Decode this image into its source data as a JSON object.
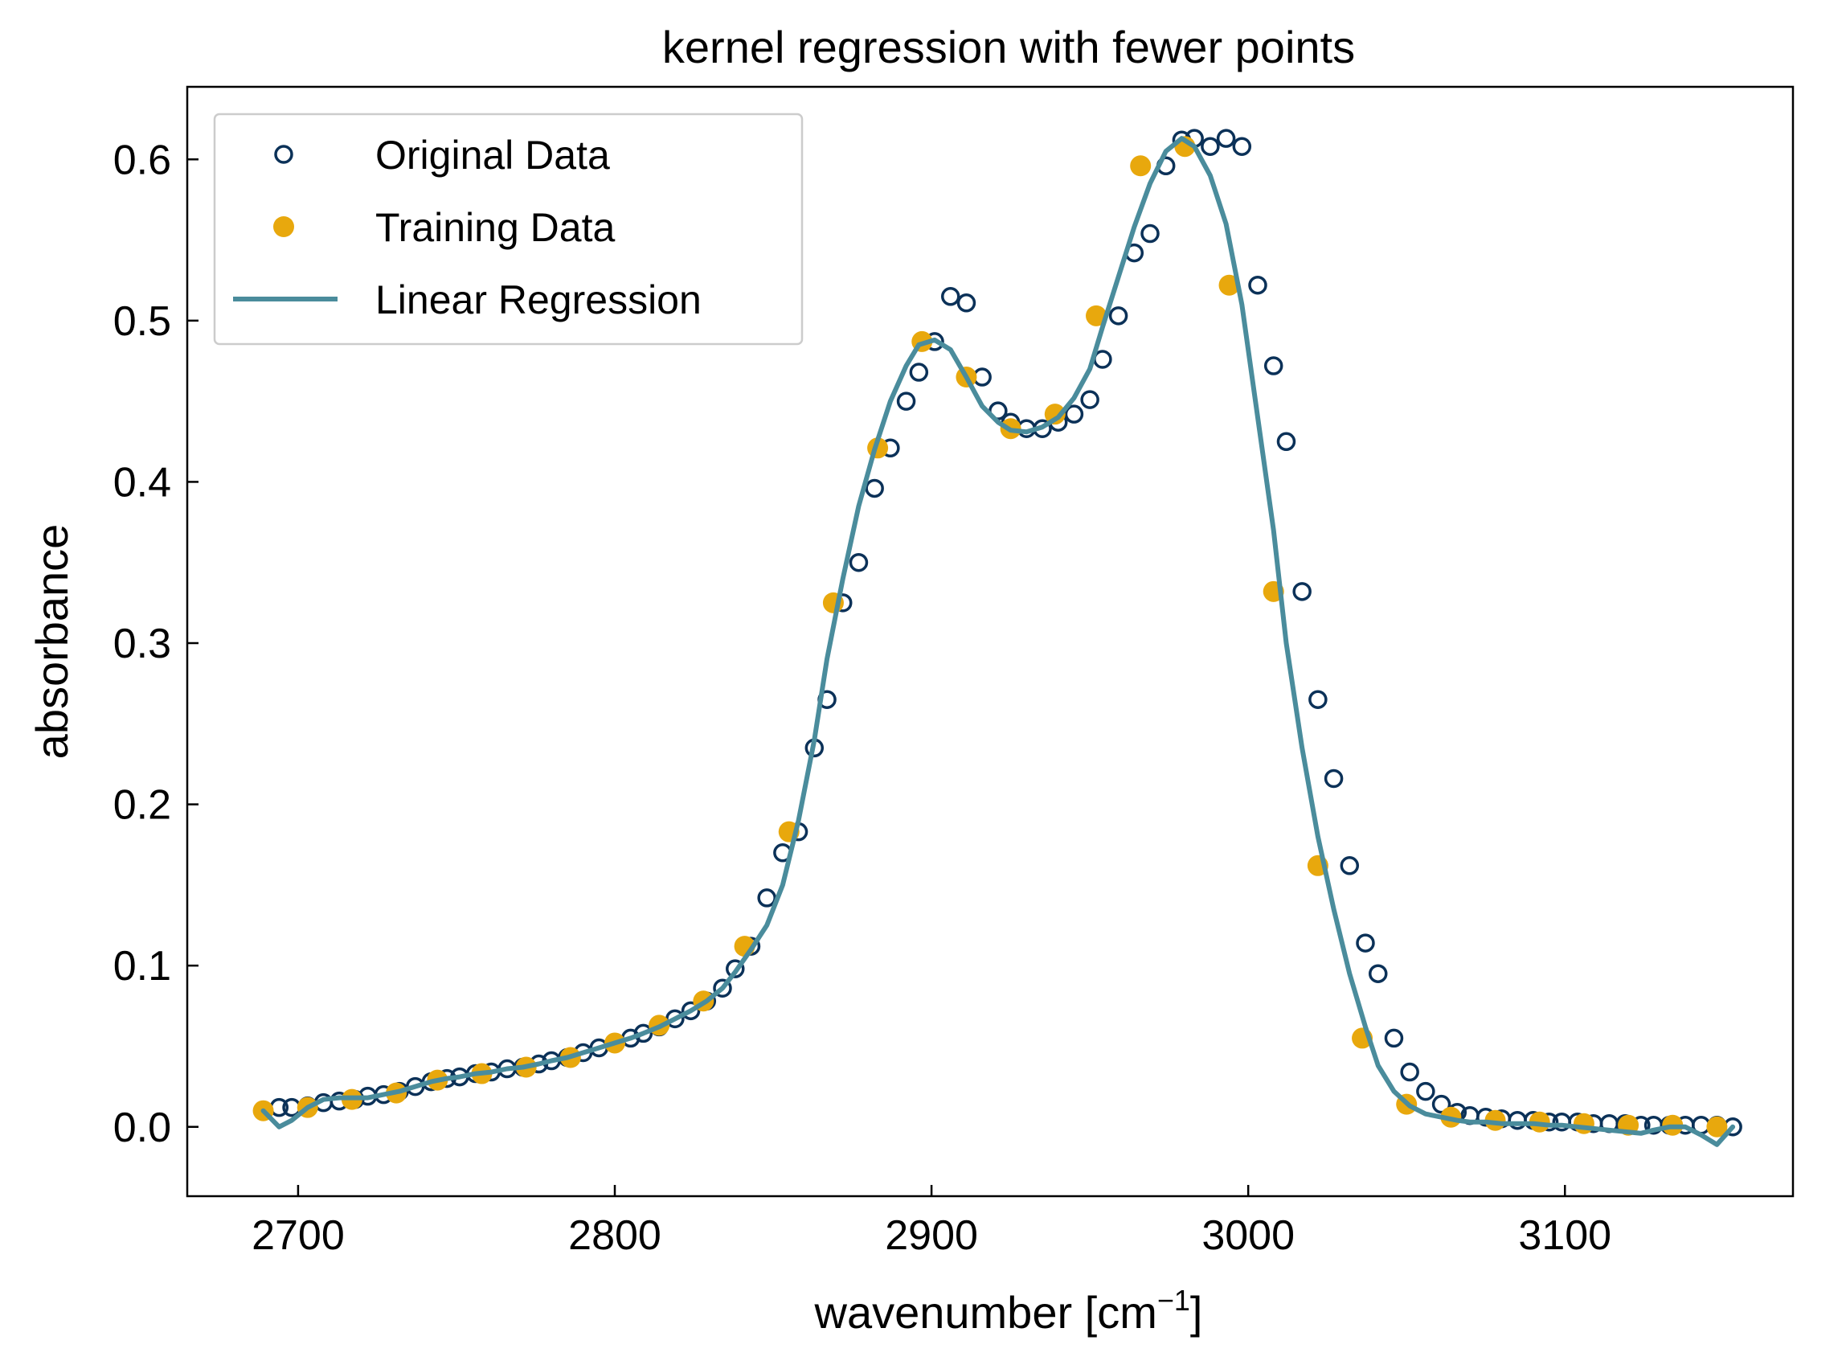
{
  "chart_data": {
    "type": "scatter",
    "title": "kernel regression with fewer points",
    "xlabel_main": "wavenumber [cm",
    "xlabel_sup": "−1",
    "xlabel_end": "]",
    "ylabel": "absorbance",
    "xlim": [
      2665,
      3172
    ],
    "ylim": [
      -0.043,
      0.645
    ],
    "xticks": [
      2700,
      2800,
      2900,
      3000,
      3100
    ],
    "xtick_labels": [
      "2700",
      "2800",
      "2900",
      "3000",
      "3100"
    ],
    "yticks": [
      0.0,
      0.1,
      0.2,
      0.3,
      0.4,
      0.5,
      0.6
    ],
    "ytick_labels": [
      "0.0",
      "0.1",
      "0.2",
      "0.3",
      "0.4",
      "0.5",
      "0.6"
    ],
    "grid": false,
    "legend_position": "top-left",
    "colors": {
      "original": "#0b3158",
      "training": "#e8a80d",
      "regression": "#4a8c9c"
    },
    "series": [
      {
        "name": "Original Data",
        "kind": "open-circle",
        "x": [
          2689,
          2694,
          2698,
          2703,
          2708,
          2713,
          2718,
          2722,
          2727,
          2732,
          2737,
          2742,
          2747,
          2751,
          2756,
          2761,
          2766,
          2771,
          2776,
          2780,
          2785,
          2790,
          2795,
          2800,
          2805,
          2809,
          2814,
          2819,
          2824,
          2829,
          2834,
          2838,
          2843,
          2848,
          2853,
          2858,
          2863,
          2867,
          2872,
          2877,
          2882,
          2887,
          2892,
          2896,
          2901,
          2906,
          2911,
          2916,
          2921,
          2925,
          2930,
          2935,
          2940,
          2945,
          2950,
          2954,
          2959,
          2964,
          2969,
          2974,
          2979,
          2983,
          2988,
          2993,
          2998,
          3003,
          3008,
          3012,
          3017,
          3022,
          3027,
          3032,
          3037,
          3041,
          3046,
          3051,
          3056,
          3061,
          3066,
          3070,
          3075,
          3080,
          3085,
          3090,
          3095,
          3099,
          3104,
          3109,
          3114,
          3119,
          3124,
          3128,
          3133,
          3138,
          3143,
          3148,
          3153
        ],
        "y": [
          0.01,
          0.012,
          0.012,
          0.013,
          0.015,
          0.016,
          0.017,
          0.019,
          0.02,
          0.022,
          0.025,
          0.028,
          0.03,
          0.031,
          0.033,
          0.034,
          0.036,
          0.037,
          0.039,
          0.041,
          0.043,
          0.046,
          0.049,
          0.052,
          0.055,
          0.058,
          0.062,
          0.067,
          0.072,
          0.078,
          0.086,
          0.098,
          0.112,
          0.142,
          0.17,
          0.183,
          0.235,
          0.265,
          0.325,
          0.35,
          0.396,
          0.421,
          0.45,
          0.468,
          0.487,
          0.515,
          0.511,
          0.465,
          0.444,
          0.437,
          0.433,
          0.433,
          0.437,
          0.442,
          0.451,
          0.476,
          0.503,
          0.542,
          0.554,
          0.596,
          0.612,
          0.613,
          0.608,
          0.613,
          0.608,
          0.522,
          0.472,
          0.425,
          0.332,
          0.265,
          0.216,
          0.162,
          0.114,
          0.095,
          0.055,
          0.034,
          0.022,
          0.014,
          0.009,
          0.007,
          0.006,
          0.005,
          0.004,
          0.004,
          0.003,
          0.003,
          0.003,
          0.002,
          0.002,
          0.002,
          0.001,
          0.001,
          0.001,
          0.001,
          0.001,
          0.001,
          0.0
        ]
      },
      {
        "name": "Training Data",
        "kind": "filled-circle",
        "x": [
          2689,
          2703,
          2717,
          2731,
          2744,
          2758,
          2772,
          2786,
          2800,
          2814,
          2828,
          2841,
          2855,
          2869,
          2883,
          2897,
          2911,
          2925,
          2939,
          2952,
          2966,
          2980,
          2994,
          3008,
          3022,
          3036,
          3050,
          3064,
          3078,
          3092,
          3106,
          3120,
          3134,
          3148
        ],
        "y": [
          0.01,
          0.012,
          0.017,
          0.021,
          0.029,
          0.033,
          0.037,
          0.043,
          0.052,
          0.063,
          0.078,
          0.112,
          0.183,
          0.325,
          0.421,
          0.487,
          0.465,
          0.433,
          0.442,
          0.503,
          0.596,
          0.608,
          0.522,
          0.332,
          0.162,
          0.055,
          0.014,
          0.006,
          0.004,
          0.003,
          0.002,
          0.001,
          0.001,
          0.0
        ]
      },
      {
        "name": "Linear Regression",
        "kind": "line",
        "x": [
          2689,
          2694,
          2698,
          2703,
          2708,
          2713,
          2718,
          2722,
          2727,
          2732,
          2737,
          2742,
          2747,
          2751,
          2756,
          2761,
          2766,
          2771,
          2776,
          2780,
          2785,
          2790,
          2795,
          2800,
          2805,
          2809,
          2814,
          2819,
          2824,
          2829,
          2834,
          2838,
          2843,
          2848,
          2853,
          2858,
          2863,
          2867,
          2872,
          2877,
          2882,
          2887,
          2892,
          2896,
          2901,
          2906,
          2911,
          2916,
          2921,
          2925,
          2930,
          2935,
          2940,
          2945,
          2950,
          2954,
          2959,
          2964,
          2969,
          2974,
          2979,
          2983,
          2988,
          2993,
          2998,
          3003,
          3008,
          3012,
          3017,
          3022,
          3027,
          3032,
          3037,
          3041,
          3046,
          3051,
          3056,
          3061,
          3066,
          3070,
          3075,
          3080,
          3085,
          3090,
          3095,
          3099,
          3104,
          3109,
          3114,
          3119,
          3124,
          3128,
          3133,
          3138,
          3143,
          3148,
          3153
        ],
        "y": [
          0.01,
          0.0,
          0.004,
          0.012,
          0.017,
          0.018,
          0.018,
          0.018,
          0.02,
          0.022,
          0.025,
          0.028,
          0.03,
          0.031,
          0.033,
          0.034,
          0.036,
          0.037,
          0.039,
          0.041,
          0.043,
          0.046,
          0.049,
          0.052,
          0.055,
          0.058,
          0.062,
          0.067,
          0.072,
          0.078,
          0.086,
          0.096,
          0.11,
          0.125,
          0.15,
          0.19,
          0.24,
          0.29,
          0.34,
          0.385,
          0.42,
          0.45,
          0.472,
          0.485,
          0.488,
          0.482,
          0.465,
          0.447,
          0.437,
          0.432,
          0.431,
          0.434,
          0.44,
          0.452,
          0.47,
          0.496,
          0.527,
          0.558,
          0.585,
          0.605,
          0.613,
          0.608,
          0.59,
          0.56,
          0.51,
          0.44,
          0.37,
          0.3,
          0.235,
          0.18,
          0.135,
          0.095,
          0.062,
          0.038,
          0.022,
          0.013,
          0.008,
          0.006,
          0.004,
          0.003,
          0.003,
          0.002,
          0.002,
          0.002,
          0.001,
          0.001,
          0.0,
          -0.001,
          -0.002,
          -0.003,
          -0.004,
          -0.002,
          0.0,
          0.0,
          -0.005,
          -0.011,
          0.0
        ]
      }
    ]
  }
}
